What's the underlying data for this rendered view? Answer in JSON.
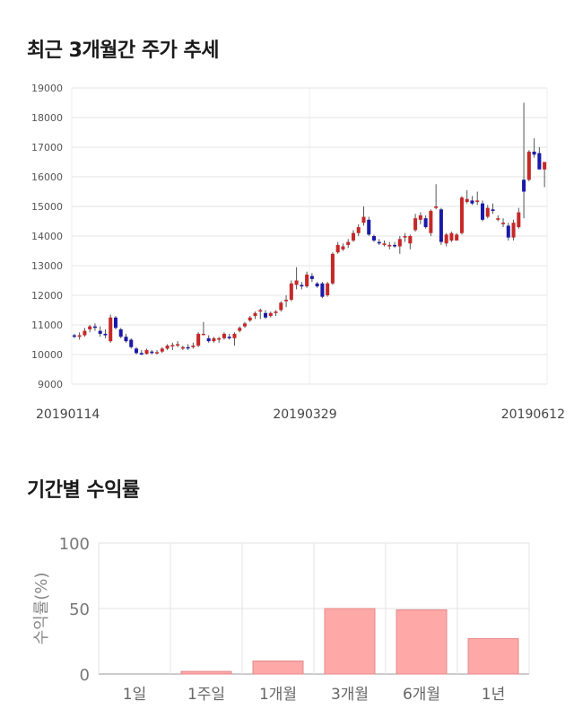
{
  "titles": {
    "trend": "최근 3개월간 주가 추세",
    "returns": "기간별 수익률"
  },
  "chart_data": [
    {
      "type": "candlestick",
      "title": "최근 3개월간 주가 추세",
      "ylim": [
        9000,
        19000
      ],
      "yticks": [
        9000,
        10000,
        11000,
        12000,
        13000,
        14000,
        15000,
        16000,
        17000,
        18000,
        19000
      ],
      "x_labels": [
        "20190114",
        "20190329",
        "20190612"
      ],
      "grid": true,
      "colors": {
        "up": "#c62828",
        "down": "#1a1aa8"
      },
      "ohlc": [
        [
          10650,
          10700,
          10550,
          10600
        ],
        [
          10600,
          10750,
          10500,
          10650
        ],
        [
          10650,
          10900,
          10600,
          10800
        ],
        [
          10850,
          11000,
          10750,
          10950
        ],
        [
          10950,
          11050,
          10800,
          10900
        ],
        [
          10800,
          10950,
          10600,
          10700
        ],
        [
          10700,
          10850,
          10550,
          10650
        ],
        [
          10450,
          11350,
          10400,
          11250
        ],
        [
          11250,
          11300,
          10850,
          10900
        ],
        [
          10850,
          10900,
          10550,
          10600
        ],
        [
          10600,
          10700,
          10400,
          10450
        ],
        [
          10500,
          10550,
          10200,
          10250
        ],
        [
          10200,
          10250,
          10000,
          10050
        ],
        [
          10050,
          10150,
          9980,
          10000
        ],
        [
          10020,
          10200,
          10000,
          10150
        ],
        [
          10100,
          10150,
          10000,
          10050
        ],
        [
          10050,
          10150,
          10000,
          10080
        ],
        [
          10100,
          10250,
          10050,
          10200
        ],
        [
          10200,
          10350,
          10150,
          10300
        ],
        [
          10300,
          10400,
          10150,
          10320
        ],
        [
          10300,
          10450,
          10250,
          10350
        ],
        [
          10200,
          10300,
          10150,
          10250
        ],
        [
          10250,
          10350,
          10150,
          10230
        ],
        [
          10250,
          10400,
          10200,
          10300
        ],
        [
          10300,
          10750,
          10250,
          10700
        ],
        [
          10700,
          11100,
          10650,
          10700
        ],
        [
          10550,
          10650,
          10400,
          10450
        ],
        [
          10450,
          10600,
          10400,
          10550
        ],
        [
          10500,
          10600,
          10400,
          10550
        ],
        [
          10550,
          10750,
          10500,
          10700
        ],
        [
          10600,
          10700,
          10500,
          10550
        ],
        [
          10550,
          10750,
          10300,
          10700
        ],
        [
          10800,
          10950,
          10750,
          10900
        ],
        [
          10950,
          11100,
          10900,
          11050
        ],
        [
          11150,
          11300,
          11100,
          11250
        ],
        [
          11300,
          11450,
          11200,
          11400
        ],
        [
          11450,
          11550,
          11200,
          11500
        ],
        [
          11400,
          11500,
          11200,
          11250
        ],
        [
          11300,
          11450,
          11250,
          11400
        ],
        [
          11400,
          11500,
          11300,
          11450
        ],
        [
          11500,
          11800,
          11450,
          11750
        ],
        [
          11800,
          12000,
          11600,
          11850
        ],
        [
          11850,
          12500,
          11800,
          12400
        ],
        [
          12350,
          12950,
          12200,
          12500
        ],
        [
          12350,
          12450,
          12200,
          12300
        ],
        [
          12300,
          12800,
          12250,
          12700
        ],
        [
          12650,
          12750,
          12450,
          12550
        ],
        [
          12400,
          12450,
          12250,
          12300
        ],
        [
          12400,
          12450,
          11900,
          11950
        ],
        [
          12000,
          12450,
          11950,
          12400
        ],
        [
          12400,
          13450,
          12350,
          13400
        ],
        [
          13450,
          13800,
          13400,
          13700
        ],
        [
          13550,
          13750,
          13500,
          13650
        ],
        [
          13700,
          13900,
          13600,
          13800
        ],
        [
          13850,
          14200,
          13800,
          14100
        ],
        [
          14100,
          14400,
          14000,
          14300
        ],
        [
          14450,
          15000,
          14350,
          14650
        ],
        [
          14550,
          14650,
          14000,
          14050
        ],
        [
          14000,
          14050,
          13800,
          13850
        ],
        [
          13800,
          13900,
          13700,
          13750
        ],
        [
          13700,
          13850,
          13650,
          13750
        ],
        [
          13650,
          13800,
          13550,
          13700
        ],
        [
          13700,
          13800,
          13600,
          13650
        ],
        [
          13650,
          14000,
          13400,
          13900
        ],
        [
          13950,
          14100,
          13800,
          14000
        ],
        [
          13750,
          14050,
          13550,
          14000
        ],
        [
          14200,
          14750,
          14150,
          14600
        ],
        [
          14550,
          14800,
          14400,
          14700
        ],
        [
          14600,
          14700,
          14250,
          14300
        ],
        [
          14100,
          14900,
          14000,
          14850
        ],
        [
          14950,
          15750,
          14900,
          15000
        ],
        [
          14900,
          14950,
          13700,
          13800
        ],
        [
          13750,
          14100,
          13650,
          14050
        ],
        [
          13850,
          14150,
          13800,
          14100
        ],
        [
          13850,
          14100,
          13850,
          14050
        ],
        [
          14100,
          15350,
          14050,
          15300
        ],
        [
          15150,
          15550,
          15100,
          15250
        ],
        [
          15200,
          15350,
          15050,
          15100
        ],
        [
          15150,
          15500,
          15050,
          15200
        ],
        [
          15100,
          15200,
          14500,
          14550
        ],
        [
          14650,
          15050,
          14600,
          14950
        ],
        [
          14900,
          15100,
          14750,
          14850
        ],
        [
          14550,
          14700,
          14500,
          14600
        ],
        [
          14400,
          14600,
          14300,
          14450
        ],
        [
          14350,
          14450,
          13850,
          13950
        ],
        [
          13950,
          14550,
          13850,
          14450
        ],
        [
          14300,
          14950,
          14250,
          14800
        ],
        [
          15900,
          16600,
          15550,
          15500
        ],
        [
          15900,
          16900,
          15850,
          16850
        ],
        [
          16850,
          17300,
          16650,
          16750
        ],
        [
          16800,
          17000,
          16250,
          16250
        ],
        [
          16250,
          16500,
          15650,
          16500
        ]
      ],
      "spike": {
        "high": 18500,
        "low": 14600
      }
    },
    {
      "type": "bar",
      "title": "기간별 수익률",
      "categories": [
        "1일",
        "1주일",
        "1개월",
        "3개월",
        "6개월",
        "1년"
      ],
      "values": [
        0,
        2,
        10,
        50,
        49,
        27
      ],
      "ylabel": "수익률(%)",
      "ylim": [
        0,
        100
      ],
      "yticks": [
        0,
        50,
        100
      ],
      "bar_color": "#ffa8a8",
      "bar_border": "#e58a8a",
      "grid": true
    }
  ]
}
